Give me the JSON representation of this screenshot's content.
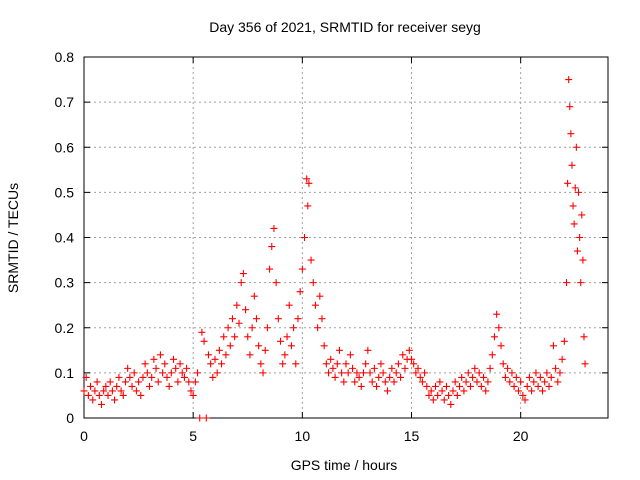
{
  "chart_data": {
    "type": "scatter",
    "title": "Day 356 of 2021, SRMTID for receiver seyg",
    "xlabel": "GPS time / hours",
    "ylabel": "SRMTID / TECUs",
    "xlim": [
      0,
      24
    ],
    "ylim": [
      0,
      0.8
    ],
    "xticks": [
      0,
      5,
      10,
      15,
      20
    ],
    "xtick_labels": [
      "0",
      "5",
      "10",
      "15",
      "20"
    ],
    "yticks": [
      0,
      0.1,
      0.2,
      0.3,
      0.4,
      0.5,
      0.6,
      0.7,
      0.8
    ],
    "ytick_labels": [
      "0",
      "0.1",
      "0.2",
      "0.3",
      "0.4",
      "0.5",
      "0.6",
      "0.7",
      "0.8"
    ],
    "grid": true,
    "marker": "+",
    "color": "#ff0000",
    "series": [
      {
        "name": "SRMTID",
        "points": [
          [
            0.0,
            0.06
          ],
          [
            0.1,
            0.09
          ],
          [
            0.2,
            0.05
          ],
          [
            0.3,
            0.07
          ],
          [
            0.4,
            0.04
          ],
          [
            0.5,
            0.06
          ],
          [
            0.6,
            0.08
          ],
          [
            0.7,
            0.05
          ],
          [
            0.8,
            0.03
          ],
          [
            0.9,
            0.06
          ],
          [
            1.0,
            0.07
          ],
          [
            1.1,
            0.05
          ],
          [
            1.2,
            0.08
          ],
          [
            1.3,
            0.06
          ],
          [
            1.4,
            0.04
          ],
          [
            1.5,
            0.07
          ],
          [
            1.6,
            0.09
          ],
          [
            1.7,
            0.06
          ],
          [
            1.8,
            0.05
          ],
          [
            1.9,
            0.08
          ],
          [
            2.0,
            0.11
          ],
          [
            2.1,
            0.09
          ],
          [
            2.2,
            0.07
          ],
          [
            2.3,
            0.1
          ],
          [
            2.4,
            0.06
          ],
          [
            2.5,
            0.08
          ],
          [
            2.6,
            0.05
          ],
          [
            2.7,
            0.09
          ],
          [
            2.8,
            0.12
          ],
          [
            2.9,
            0.1
          ],
          [
            3.0,
            0.07
          ],
          [
            3.1,
            0.09
          ],
          [
            3.2,
            0.13
          ],
          [
            3.3,
            0.11
          ],
          [
            3.4,
            0.08
          ],
          [
            3.5,
            0.14
          ],
          [
            3.6,
            0.1
          ],
          [
            3.7,
            0.12
          ],
          [
            3.8,
            0.09
          ],
          [
            3.9,
            0.07
          ],
          [
            4.0,
            0.1
          ],
          [
            4.1,
            0.13
          ],
          [
            4.2,
            0.11
          ],
          [
            4.3,
            0.08
          ],
          [
            4.4,
            0.12
          ],
          [
            4.5,
            0.1
          ],
          [
            4.6,
            0.09
          ],
          [
            4.7,
            0.11
          ],
          [
            4.8,
            0.08
          ],
          [
            4.9,
            0.06
          ],
          [
            5.0,
            0.05
          ],
          [
            5.1,
            0.08
          ],
          [
            5.2,
            0.1
          ],
          [
            5.3,
            0.0
          ],
          [
            5.4,
            0.19
          ],
          [
            5.5,
            0.17
          ],
          [
            5.6,
            0.0
          ],
          [
            5.7,
            0.14
          ],
          [
            5.8,
            0.12
          ],
          [
            5.9,
            0.09
          ],
          [
            6.0,
            0.13
          ],
          [
            6.1,
            0.1
          ],
          [
            6.2,
            0.15
          ],
          [
            6.3,
            0.12
          ],
          [
            6.4,
            0.18
          ],
          [
            6.5,
            0.14
          ],
          [
            6.6,
            0.2
          ],
          [
            6.7,
            0.16
          ],
          [
            6.8,
            0.22
          ],
          [
            6.9,
            0.18
          ],
          [
            7.0,
            0.25
          ],
          [
            7.1,
            0.21
          ],
          [
            7.2,
            0.3
          ],
          [
            7.3,
            0.32
          ],
          [
            7.4,
            0.24
          ],
          [
            7.5,
            0.18
          ],
          [
            7.6,
            0.14
          ],
          [
            7.7,
            0.2
          ],
          [
            7.8,
            0.27
          ],
          [
            7.9,
            0.22
          ],
          [
            8.0,
            0.16
          ],
          [
            8.1,
            0.12
          ],
          [
            8.2,
            0.1
          ],
          [
            8.3,
            0.15
          ],
          [
            8.4,
            0.2
          ],
          [
            8.5,
            0.33
          ],
          [
            8.6,
            0.38
          ],
          [
            8.7,
            0.42
          ],
          [
            8.8,
            0.3
          ],
          [
            8.9,
            0.22
          ],
          [
            9.0,
            0.17
          ],
          [
            9.1,
            0.12
          ],
          [
            9.2,
            0.14
          ],
          [
            9.3,
            0.18
          ],
          [
            9.4,
            0.25
          ],
          [
            9.5,
            0.16
          ],
          [
            9.6,
            0.2
          ],
          [
            9.7,
            0.12
          ],
          [
            9.8,
            0.22
          ],
          [
            9.9,
            0.28
          ],
          [
            10.0,
            0.33
          ],
          [
            10.1,
            0.4
          ],
          [
            10.2,
            0.53
          ],
          [
            10.25,
            0.47
          ],
          [
            10.3,
            0.52
          ],
          [
            10.4,
            0.35
          ],
          [
            10.5,
            0.3
          ],
          [
            10.6,
            0.25
          ],
          [
            10.7,
            0.2
          ],
          [
            10.8,
            0.27
          ],
          [
            10.9,
            0.22
          ],
          [
            11.0,
            0.16
          ],
          [
            11.1,
            0.12
          ],
          [
            11.2,
            0.1
          ],
          [
            11.3,
            0.13
          ],
          [
            11.4,
            0.11
          ],
          [
            11.5,
            0.09
          ],
          [
            11.6,
            0.12
          ],
          [
            11.7,
            0.15
          ],
          [
            11.8,
            0.1
          ],
          [
            11.9,
            0.08
          ],
          [
            12.0,
            0.12
          ],
          [
            12.1,
            0.1
          ],
          [
            12.2,
            0.14
          ],
          [
            12.3,
            0.11
          ],
          [
            12.4,
            0.08
          ],
          [
            12.5,
            0.1
          ],
          [
            12.6,
            0.09
          ],
          [
            12.7,
            0.07
          ],
          [
            12.8,
            0.1
          ],
          [
            12.9,
            0.12
          ],
          [
            13.0,
            0.15
          ],
          [
            13.1,
            0.1
          ],
          [
            13.2,
            0.08
          ],
          [
            13.3,
            0.11
          ],
          [
            13.4,
            0.07
          ],
          [
            13.5,
            0.09
          ],
          [
            13.6,
            0.12
          ],
          [
            13.7,
            0.1
          ],
          [
            13.8,
            0.08
          ],
          [
            13.9,
            0.06
          ],
          [
            14.0,
            0.09
          ],
          [
            14.1,
            0.11
          ],
          [
            14.2,
            0.08
          ],
          [
            14.3,
            0.1
          ],
          [
            14.4,
            0.12
          ],
          [
            14.5,
            0.09
          ],
          [
            14.6,
            0.14
          ],
          [
            14.7,
            0.11
          ],
          [
            14.8,
            0.13
          ],
          [
            14.9,
            0.15
          ],
          [
            15.0,
            0.13
          ],
          [
            15.1,
            0.12
          ],
          [
            15.2,
            0.1
          ],
          [
            15.3,
            0.11
          ],
          [
            15.4,
            0.09
          ],
          [
            15.5,
            0.08
          ],
          [
            15.6,
            0.1
          ],
          [
            15.7,
            0.07
          ],
          [
            15.8,
            0.05
          ],
          [
            15.9,
            0.06
          ],
          [
            16.0,
            0.04
          ],
          [
            16.1,
            0.07
          ],
          [
            16.2,
            0.05
          ],
          [
            16.3,
            0.08
          ],
          [
            16.4,
            0.06
          ],
          [
            16.5,
            0.04
          ],
          [
            16.6,
            0.07
          ],
          [
            16.7,
            0.05
          ],
          [
            16.8,
            0.03
          ],
          [
            16.9,
            0.06
          ],
          [
            17.0,
            0.08
          ],
          [
            17.1,
            0.05
          ],
          [
            17.2,
            0.07
          ],
          [
            17.3,
            0.09
          ],
          [
            17.4,
            0.06
          ],
          [
            17.5,
            0.08
          ],
          [
            17.6,
            0.1
          ],
          [
            17.7,
            0.07
          ],
          [
            17.8,
            0.09
          ],
          [
            17.9,
            0.11
          ],
          [
            18.0,
            0.08
          ],
          [
            18.1,
            0.1
          ],
          [
            18.2,
            0.07
          ],
          [
            18.3,
            0.09
          ],
          [
            18.4,
            0.06
          ],
          [
            18.5,
            0.08
          ],
          [
            18.6,
            0.11
          ],
          [
            18.7,
            0.14
          ],
          [
            18.8,
            0.18
          ],
          [
            18.9,
            0.23
          ],
          [
            19.0,
            0.2
          ],
          [
            19.1,
            0.16
          ],
          [
            19.2,
            0.12
          ],
          [
            19.3,
            0.09
          ],
          [
            19.4,
            0.11
          ],
          [
            19.5,
            0.08
          ],
          [
            19.6,
            0.1
          ],
          [
            19.7,
            0.07
          ],
          [
            19.8,
            0.09
          ],
          [
            19.9,
            0.06
          ],
          [
            20.0,
            0.08
          ],
          [
            20.1,
            0.05
          ],
          [
            20.2,
            0.04
          ],
          [
            20.3,
            0.07
          ],
          [
            20.4,
            0.09
          ],
          [
            20.5,
            0.06
          ],
          [
            20.6,
            0.08
          ],
          [
            20.7,
            0.1
          ],
          [
            20.8,
            0.07
          ],
          [
            20.9,
            0.09
          ],
          [
            21.0,
            0.06
          ],
          [
            21.1,
            0.08
          ],
          [
            21.2,
            0.1
          ],
          [
            21.3,
            0.07
          ],
          [
            21.4,
            0.09
          ],
          [
            21.5,
            0.16
          ],
          [
            21.6,
            0.11
          ],
          [
            21.7,
            0.08
          ],
          [
            21.8,
            0.1
          ],
          [
            21.9,
            0.13
          ],
          [
            22.0,
            0.17
          ],
          [
            22.1,
            0.3
          ],
          [
            22.15,
            0.52
          ],
          [
            22.2,
            0.75
          ],
          [
            22.25,
            0.69
          ],
          [
            22.3,
            0.63
          ],
          [
            22.35,
            0.56
          ],
          [
            22.4,
            0.47
          ],
          [
            22.45,
            0.43
          ],
          [
            22.5,
            0.51
          ],
          [
            22.55,
            0.6
          ],
          [
            22.6,
            0.37
          ],
          [
            22.65,
            0.5
          ],
          [
            22.7,
            0.4
          ],
          [
            22.75,
            0.3
          ],
          [
            22.8,
            0.45
          ],
          [
            22.85,
            0.35
          ],
          [
            22.9,
            0.18
          ],
          [
            22.95,
            0.12
          ]
        ]
      }
    ]
  }
}
